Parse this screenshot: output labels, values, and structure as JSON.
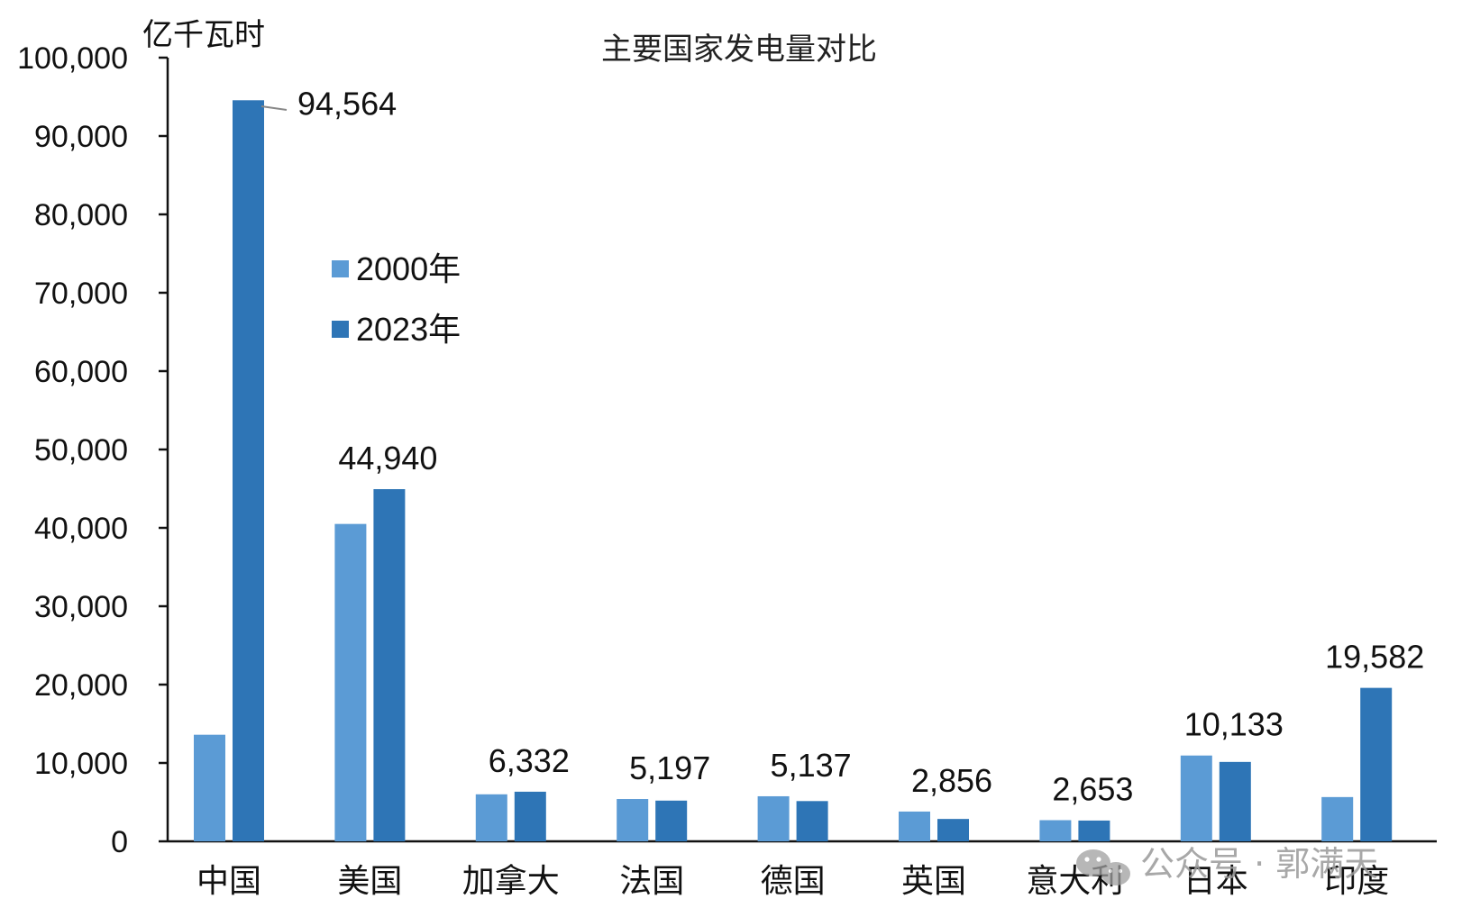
{
  "chart_data": {
    "type": "bar",
    "title": "主要国家发电量对比",
    "ylabel": "亿千瓦时",
    "xlabel": "",
    "ylim": [
      0,
      100000
    ],
    "yticks": [
      0,
      10000,
      20000,
      30000,
      40000,
      50000,
      60000,
      70000,
      80000,
      90000,
      100000
    ],
    "ytick_labels": [
      "0",
      "10,000",
      "20,000",
      "30,000",
      "40,000",
      "50,000",
      "60,000",
      "70,000",
      "80,000",
      "90,000",
      "100,000"
    ],
    "categories": [
      "中国",
      "美国",
      "加拿大",
      "法国",
      "德国",
      "英国",
      "意大利",
      "日本",
      "印度"
    ],
    "series": [
      {
        "name": "2000年",
        "color": "#5b9bd5",
        "values": [
          13600,
          40500,
          6000,
          5400,
          5750,
          3800,
          2700,
          10950,
          5650
        ]
      },
      {
        "name": "2023年",
        "color": "#2e75b6",
        "values": [
          94564,
          44940,
          6332,
          5197,
          5137,
          2856,
          2653,
          10133,
          19582
        ]
      }
    ],
    "data_labels": [
      "94,564",
      "44,940",
      "6,332",
      "5,197",
      "5,137",
      "2,856",
      "2,653",
      "10,133",
      "19,582"
    ],
    "legend_position": "upper-left",
    "grid": false
  },
  "watermark": "公众号 · 郭满天"
}
